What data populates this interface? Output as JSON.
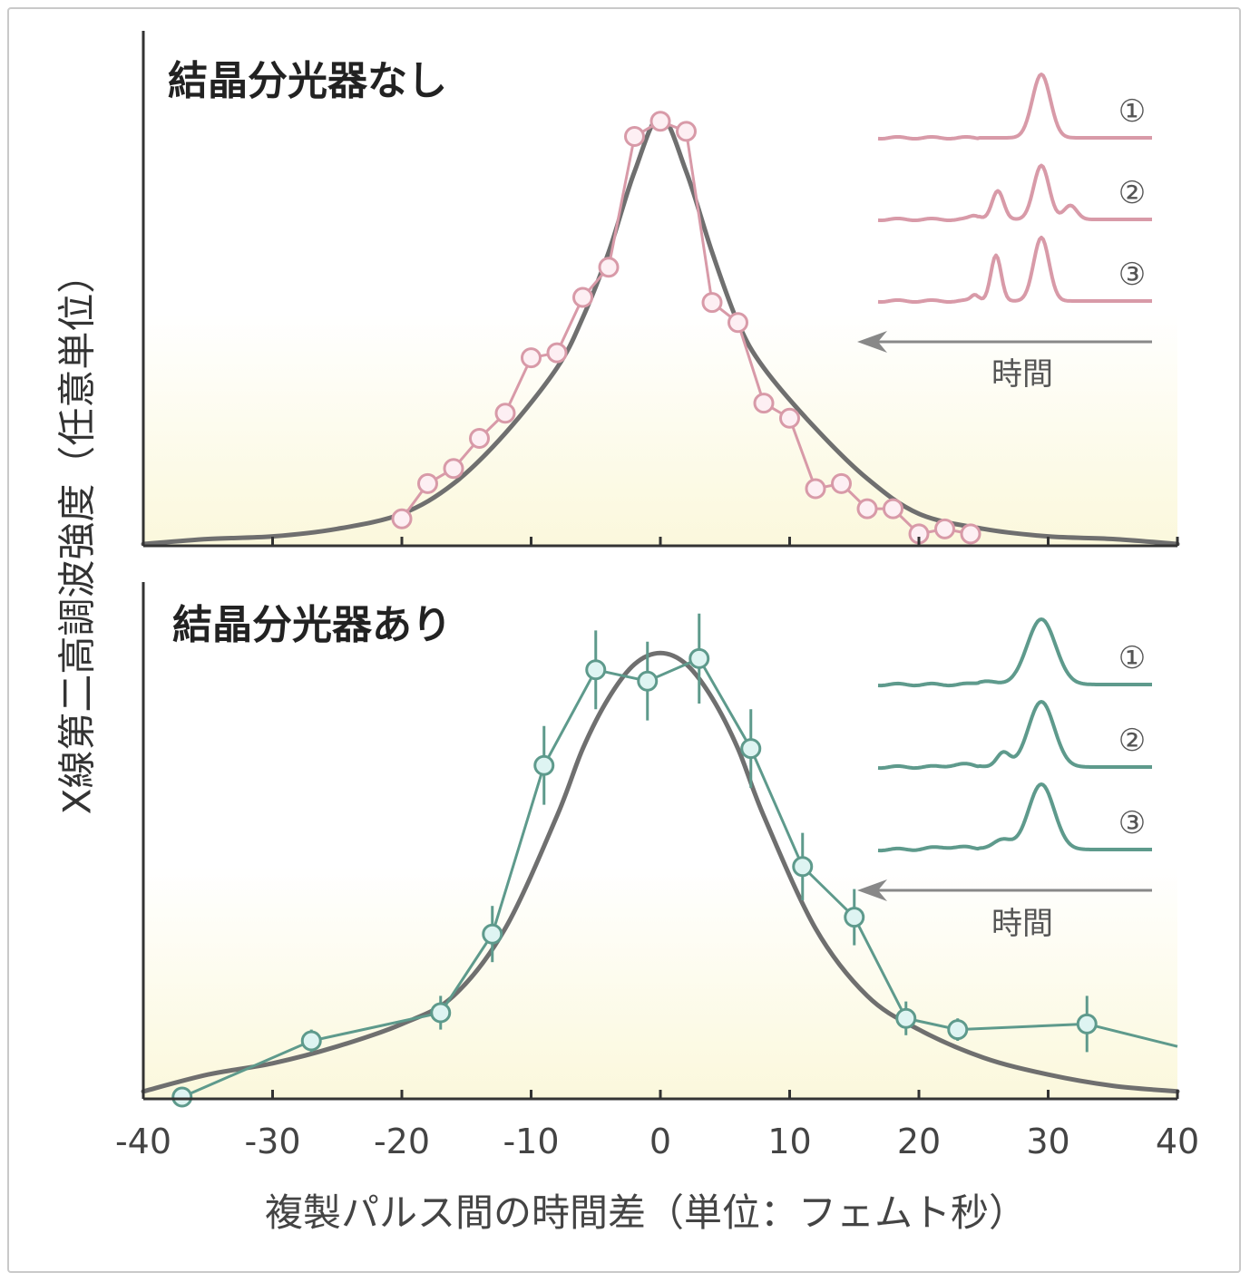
{
  "ylabel": "X線第二高調波強度（任意単位）",
  "xlabel": "複製パルス間の時間差（単位：フェムト秒）",
  "colors": {
    "pink": "#d89aa8",
    "teal": "#5e9a8c",
    "fit": "#6f6f6f",
    "cyan_fill": "#def4f2",
    "pink_fill": "#fdeff3",
    "axis": "#333333",
    "bg_bottom": "#fbf8dc"
  },
  "chart_data": [
    {
      "type": "line",
      "title": "結晶分光器なし",
      "xlim": [
        -40,
        40
      ],
      "ylim": [
        0,
        1
      ],
      "xticks": [
        -40,
        -30,
        -20,
        -10,
        0,
        10,
        20,
        30,
        40
      ],
      "series": [
        {
          "kind": "measured",
          "x": [
            -20,
            -18,
            -16,
            -14,
            -12,
            -10,
            -8,
            -6,
            -4,
            -2,
            0,
            2,
            4,
            6,
            8,
            10,
            12,
            14,
            16,
            18,
            20,
            22,
            24
          ],
          "y": [
            0.05,
            0.12,
            0.15,
            0.21,
            0.26,
            0.37,
            0.38,
            0.49,
            0.55,
            0.81,
            0.84,
            0.82,
            0.48,
            0.44,
            0.28,
            0.25,
            0.11,
            0.12,
            0.07,
            0.07,
            0.02,
            0.03,
            0.02
          ]
        },
        {
          "kind": "fit",
          "x": [
            -40,
            -35,
            -30,
            -25,
            -20,
            -16,
            -12,
            -8,
            -6,
            -4,
            -2,
            0,
            2,
            4,
            6,
            8,
            12,
            16,
            20,
            25,
            30,
            35,
            40
          ],
          "y": [
            0.0,
            0.01,
            0.015,
            0.03,
            0.06,
            0.12,
            0.22,
            0.35,
            0.45,
            0.58,
            0.74,
            0.85,
            0.74,
            0.58,
            0.44,
            0.35,
            0.23,
            0.13,
            0.06,
            0.03,
            0.015,
            0.01,
            0.0
          ]
        }
      ],
      "inset": {
        "labels": [
          "①",
          "②",
          "③"
        ],
        "arrow_label": "時間"
      }
    },
    {
      "type": "line",
      "title": "結晶分光器あり",
      "xlim": [
        -40,
        40
      ],
      "ylim": [
        0,
        1
      ],
      "xticks": [
        -40,
        -30,
        -20,
        -10,
        0,
        10,
        20,
        30,
        40
      ],
      "xtick_labels": [
        "-40",
        "-30",
        "-20",
        "-10",
        "0",
        "10",
        "20",
        "30",
        "40"
      ],
      "series": [
        {
          "kind": "measured",
          "x": [
            -37,
            -27,
            -17,
            -13,
            -9,
            -5,
            -1,
            3,
            7,
            11,
            15,
            19,
            23,
            33
          ],
          "y": [
            0.0,
            0.1,
            0.15,
            0.29,
            0.59,
            0.76,
            0.74,
            0.78,
            0.62,
            0.41,
            0.32,
            0.14,
            0.12,
            0.13
          ],
          "yerr": [
            0.0,
            0.02,
            0.03,
            0.05,
            0.07,
            0.07,
            0.07,
            0.08,
            0.07,
            0.06,
            0.05,
            0.03,
            0.02,
            0.05
          ]
        },
        {
          "kind": "fit",
          "x": [
            -40,
            -35,
            -30,
            -25,
            -20,
            -16,
            -12,
            -8,
            -6,
            -4,
            -2,
            0,
            2,
            4,
            6,
            8,
            12,
            16,
            20,
            25,
            30,
            35,
            40
          ],
          "y": [
            0.01,
            0.04,
            0.06,
            0.09,
            0.13,
            0.18,
            0.3,
            0.5,
            0.62,
            0.71,
            0.77,
            0.79,
            0.77,
            0.71,
            0.62,
            0.5,
            0.3,
            0.18,
            0.12,
            0.07,
            0.04,
            0.02,
            0.01
          ]
        },
        {
          "kind": "measured-tail",
          "x": [
            33,
            40
          ],
          "y": [
            0.13,
            0.09
          ]
        }
      ],
      "inset": {
        "labels": [
          "①",
          "②",
          "③"
        ],
        "arrow_label": "時間"
      }
    }
  ]
}
